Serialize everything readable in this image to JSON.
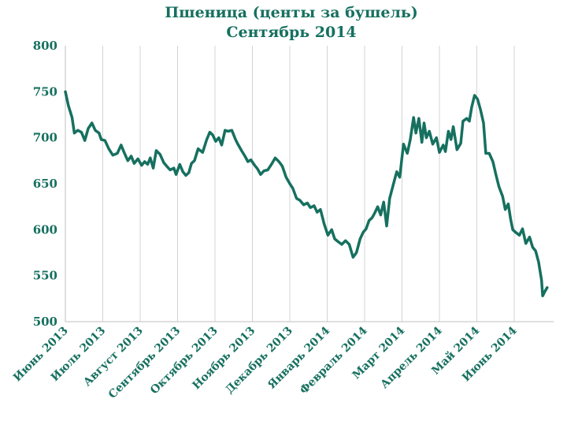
{
  "chart_data": {
    "type": "line",
    "title": "Пшеница (центы за бушель)",
    "subtitle": "Сентябрь 2014",
    "xlabel": "",
    "ylabel": "",
    "ylim": [
      500,
      800
    ],
    "yticks": [
      500,
      550,
      600,
      650,
      700,
      750,
      800
    ],
    "grid": "vertical",
    "legend": "none",
    "categories": [
      "Июнь 2013",
      "Июль 2013",
      "Август 2013",
      "Сентябрь 2013",
      "Октябрь 2013",
      "Ноябрь 2013",
      "Декабрь 2013",
      "Январь 2014",
      "Февраль 2014",
      "Март 2014",
      "Апрель 2014",
      "Май 2014",
      "Июнь 2014"
    ],
    "line_color": "#16705f",
    "series": [
      {
        "values": [
          [
            0.0,
            750
          ],
          [
            0.08,
            735
          ],
          [
            0.18,
            722
          ],
          [
            0.24,
            705
          ],
          [
            0.33,
            708
          ],
          [
            0.43,
            706
          ],
          [
            0.52,
            697
          ],
          [
            0.61,
            710
          ],
          [
            0.71,
            716
          ],
          [
            0.8,
            708
          ],
          [
            0.9,
            705
          ],
          [
            0.96,
            698
          ],
          [
            1.06,
            697
          ],
          [
            1.16,
            688
          ],
          [
            1.27,
            681
          ],
          [
            1.39,
            683
          ],
          [
            1.49,
            692
          ],
          [
            1.57,
            684
          ],
          [
            1.67,
            675
          ],
          [
            1.76,
            680
          ],
          [
            1.84,
            672
          ],
          [
            1.94,
            677
          ],
          [
            2.04,
            670
          ],
          [
            2.12,
            674
          ],
          [
            2.2,
            671
          ],
          [
            2.27,
            678
          ],
          [
            2.35,
            667
          ],
          [
            2.43,
            686
          ],
          [
            2.53,
            682
          ],
          [
            2.63,
            673
          ],
          [
            2.71,
            669
          ],
          [
            2.8,
            665
          ],
          [
            2.9,
            667
          ],
          [
            2.96,
            660
          ],
          [
            3.06,
            671
          ],
          [
            3.14,
            663
          ],
          [
            3.22,
            659
          ],
          [
            3.3,
            662
          ],
          [
            3.37,
            672
          ],
          [
            3.45,
            675
          ],
          [
            3.55,
            688
          ],
          [
            3.67,
            684
          ],
          [
            3.78,
            698
          ],
          [
            3.86,
            706
          ],
          [
            3.94,
            703
          ],
          [
            4.02,
            696
          ],
          [
            4.1,
            700
          ],
          [
            4.18,
            692
          ],
          [
            4.27,
            708
          ],
          [
            4.35,
            707
          ],
          [
            4.45,
            708
          ],
          [
            4.55,
            698
          ],
          [
            4.61,
            693
          ],
          [
            4.71,
            686
          ],
          [
            4.8,
            680
          ],
          [
            4.88,
            674
          ],
          [
            4.96,
            676
          ],
          [
            5.06,
            670
          ],
          [
            5.14,
            666
          ],
          [
            5.22,
            660
          ],
          [
            5.31,
            664
          ],
          [
            5.41,
            665
          ],
          [
            5.51,
            671
          ],
          [
            5.61,
            678
          ],
          [
            5.71,
            674
          ],
          [
            5.8,
            669
          ],
          [
            5.9,
            657
          ],
          [
            6.0,
            650
          ],
          [
            6.08,
            645
          ],
          [
            6.18,
            634
          ],
          [
            6.27,
            632
          ],
          [
            6.37,
            627
          ],
          [
            6.47,
            629
          ],
          [
            6.55,
            624
          ],
          [
            6.65,
            626
          ],
          [
            6.73,
            619
          ],
          [
            6.82,
            622
          ],
          [
            6.92,
            606
          ],
          [
            7.02,
            594
          ],
          [
            7.12,
            600
          ],
          [
            7.2,
            590
          ],
          [
            7.29,
            587
          ],
          [
            7.39,
            584
          ],
          [
            7.49,
            588
          ],
          [
            7.59,
            584
          ],
          [
            7.69,
            570
          ],
          [
            7.78,
            575
          ],
          [
            7.88,
            590
          ],
          [
            7.96,
            597
          ],
          [
            8.04,
            601
          ],
          [
            8.12,
            610
          ],
          [
            8.2,
            613
          ],
          [
            8.27,
            618
          ],
          [
            8.35,
            625
          ],
          [
            8.43,
            616
          ],
          [
            8.51,
            630
          ],
          [
            8.59,
            604
          ],
          [
            8.67,
            634
          ],
          [
            8.76,
            648
          ],
          [
            8.86,
            663
          ],
          [
            8.94,
            657
          ],
          [
            9.04,
            693
          ],
          [
            9.14,
            683
          ],
          [
            9.22,
            698
          ],
          [
            9.31,
            722
          ],
          [
            9.37,
            705
          ],
          [
            9.45,
            721
          ],
          [
            9.53,
            695
          ],
          [
            9.59,
            716
          ],
          [
            9.65,
            700
          ],
          [
            9.73,
            707
          ],
          [
            9.82,
            693
          ],
          [
            9.92,
            700
          ],
          [
            10.0,
            684
          ],
          [
            10.1,
            692
          ],
          [
            10.16,
            685
          ],
          [
            10.24,
            707
          ],
          [
            10.31,
            698
          ],
          [
            10.37,
            712
          ],
          [
            10.47,
            687
          ],
          [
            10.57,
            694
          ],
          [
            10.63,
            718
          ],
          [
            10.73,
            721
          ],
          [
            10.8,
            718
          ],
          [
            10.86,
            733
          ],
          [
            10.94,
            746
          ],
          [
            11.02,
            742
          ],
          [
            11.1,
            730
          ],
          [
            11.18,
            716
          ],
          [
            11.24,
            683
          ],
          [
            11.33,
            683
          ],
          [
            11.43,
            674
          ],
          [
            11.51,
            660
          ],
          [
            11.59,
            647
          ],
          [
            11.69,
            636
          ],
          [
            11.76,
            622
          ],
          [
            11.84,
            628
          ],
          [
            11.9,
            612
          ],
          [
            11.96,
            600
          ],
          [
            12.04,
            597
          ],
          [
            12.14,
            594
          ],
          [
            12.22,
            601
          ],
          [
            12.31,
            585
          ],
          [
            12.41,
            592
          ],
          [
            12.49,
            581
          ],
          [
            12.57,
            577
          ],
          [
            12.65,
            565
          ],
          [
            12.73,
            545
          ],
          [
            12.76,
            528
          ],
          [
            12.82,
            533
          ],
          [
            12.88,
            537
          ]
        ]
      }
    ]
  }
}
